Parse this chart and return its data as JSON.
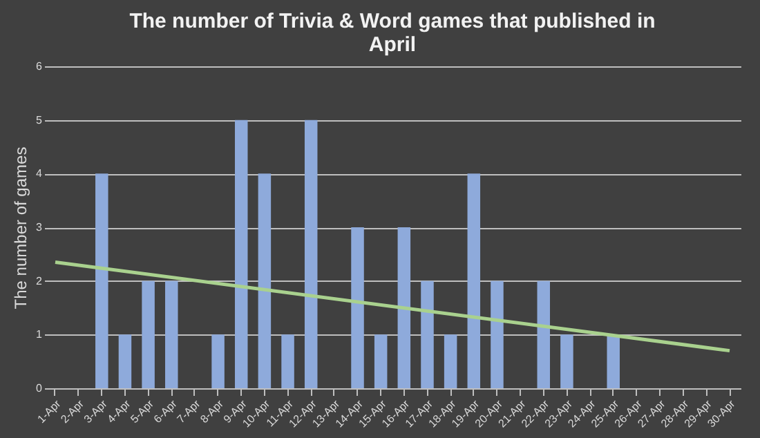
{
  "chart_data": {
    "type": "bar",
    "title": "The number of Trivia & Word games that published in April",
    "ylabel": "The number of games",
    "categories": [
      "1-Apr",
      "2-Apr",
      "3-Apr",
      "4-Apr",
      "5-Apr",
      "6-Apr",
      "7-Apr",
      "8-Apr",
      "9-Apr",
      "10-Apr",
      "11-Apr",
      "12-Apr",
      "13-Apr",
      "14-Apr",
      "15-Apr",
      "16-Apr",
      "17-Apr",
      "18-Apr",
      "19-Apr",
      "20-Apr",
      "21-Apr",
      "22-Apr",
      "23-Apr",
      "24-Apr",
      "25-Apr",
      "26-Apr",
      "27-Apr",
      "28-Apr",
      "29-Apr",
      "30-Apr"
    ],
    "series": [
      {
        "color": "#8eaadb",
        "values": [
          0,
          0,
          4,
          1,
          2,
          2,
          0,
          1,
          5,
          4,
          1,
          5,
          0,
          3,
          1,
          3,
          2,
          1,
          4,
          2,
          0,
          2,
          1,
          0,
          1,
          0,
          0,
          0,
          0,
          0
        ]
      },
      {
        "type": "line",
        "color": "#a9d18e",
        "x": [
          "1-Apr",
          "30-Apr"
        ],
        "values": [
          2.35,
          0.7
        ]
      }
    ],
    "ylim": [
      0,
      6
    ],
    "yticks": [
      0,
      1,
      2,
      3,
      4,
      5,
      6
    ],
    "grid": "y"
  }
}
